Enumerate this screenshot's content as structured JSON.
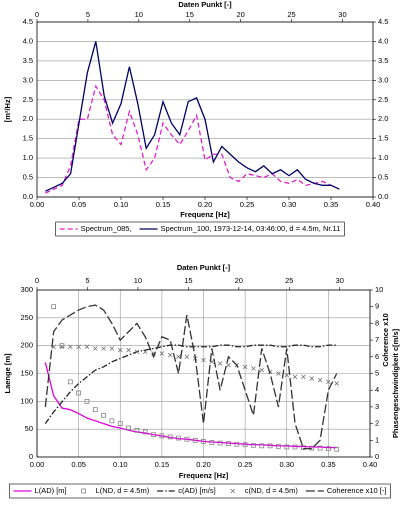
{
  "chart_data": [
    {
      "type": "line",
      "x2label": "Daten Punkt [-]",
      "xlabel": "Frequenz [Hz]",
      "ylabel": "[m²/Hz]",
      "x": [
        0.01,
        0.02,
        0.03,
        0.04,
        0.05,
        0.06,
        0.07,
        0.08,
        0.09,
        0.1,
        0.11,
        0.12,
        0.13,
        0.14,
        0.15,
        0.16,
        0.17,
        0.18,
        0.19,
        0.2,
        0.21,
        0.22,
        0.23,
        0.24,
        0.25,
        0.26,
        0.27,
        0.28,
        0.29,
        0.3,
        0.31,
        0.32,
        0.33,
        0.34,
        0.35,
        0.36
      ],
      "xlim": [
        0,
        0.4
      ],
      "xticks": [
        {
          "value": 0,
          "label": "0.00"
        },
        0.05,
        {
          "value": 0.1,
          "label": "0.10"
        },
        0.15,
        {
          "value": 0.2,
          "label": "0.20"
        },
        0.25,
        {
          "value": 0.3,
          "label": "0.30"
        },
        0.35,
        {
          "value": 0.4,
          "label": "0.40"
        }
      ],
      "x2lim": [
        0,
        33
      ],
      "x2ticks": [
        0,
        5,
        10,
        15,
        20,
        25,
        30
      ],
      "ylim": [
        0,
        4.5
      ],
      "yticks": [
        {
          "value": 0,
          "label": "0.0"
        },
        0.5,
        {
          "value": 1,
          "label": "1.0"
        },
        1.5,
        {
          "value": 2,
          "label": "2.0"
        },
        2.5,
        {
          "value": 3,
          "label": "3.0"
        },
        3.5,
        {
          "value": 4,
          "label": "4.0"
        },
        4.5
      ],
      "y2lim": [
        0,
        4.5
      ],
      "y2ticks": [
        {
          "value": 0,
          "label": "0.0"
        },
        0.5,
        {
          "value": 1,
          "label": "1.0"
        },
        1.5,
        {
          "value": 2,
          "label": "2.0"
        },
        2.5,
        {
          "value": 3,
          "label": "3.0"
        },
        3.5,
        {
          "value": 4,
          "label": "4.0"
        },
        4.5
      ],
      "grid_axes": [
        "y"
      ],
      "series": [
        {
          "name": "Spectrum_085,",
          "color": "#e020c8",
          "dash": "dashed",
          "values": [
            0.1,
            0.2,
            0.3,
            0.8,
            2.0,
            2.0,
            2.85,
            2.5,
            1.6,
            1.35,
            2.2,
            1.6,
            0.7,
            1.0,
            1.9,
            1.6,
            1.35,
            1.7,
            2.1,
            0.95,
            1.1,
            1.1,
            0.5,
            0.4,
            0.6,
            0.55,
            0.5,
            0.6,
            0.4,
            0.35,
            0.45,
            0.3,
            0.35,
            0.4,
            0.3,
            null
          ]
        },
        {
          "name": "Spectrum_100, 1973-12-14, 03:46:00, d = 4.5m, Nr.11",
          "color": "#000066",
          "dash": "solid",
          "values": [
            0.15,
            0.25,
            0.35,
            0.6,
            1.9,
            3.2,
            4.0,
            2.6,
            1.9,
            2.4,
            3.35,
            2.4,
            1.25,
            1.6,
            2.45,
            1.9,
            1.6,
            2.45,
            2.55,
            2.0,
            0.9,
            1.3,
            1.1,
            0.9,
            0.75,
            0.65,
            0.8,
            0.6,
            0.7,
            0.55,
            0.7,
            0.45,
            0.35,
            0.3,
            0.3,
            0.2
          ]
        }
      ]
    },
    {
      "type": "line",
      "x2label": "Daten Punkt [-]",
      "xlabel": "Frequenz [Hz]",
      "ylabel": "Laenge [m]",
      "y2labels": [
        "Coherence x10",
        "Phasengeschwindigkeit c[m/s]"
      ],
      "x": [
        0.01,
        0.02,
        0.03,
        0.04,
        0.05,
        0.06,
        0.07,
        0.08,
        0.09,
        0.1,
        0.11,
        0.12,
        0.13,
        0.14,
        0.15,
        0.16,
        0.17,
        0.18,
        0.19,
        0.2,
        0.21,
        0.22,
        0.23,
        0.24,
        0.25,
        0.26,
        0.27,
        0.28,
        0.29,
        0.3,
        0.31,
        0.32,
        0.33,
        0.34,
        0.35,
        0.36
      ],
      "xlim": [
        0,
        0.4
      ],
      "xticks": [
        {
          "value": 0,
          "label": "0.00"
        },
        0.05,
        {
          "value": 0.1,
          "label": "0.10"
        },
        0.15,
        {
          "value": 0.2,
          "label": "0.20"
        },
        0.25,
        {
          "value": 0.3,
          "label": "0.30"
        },
        0.35,
        {
          "value": 0.4,
          "label": "0.40"
        }
      ],
      "x2lim": [
        0,
        33
      ],
      "x2ticks": [
        0,
        5,
        10,
        15,
        20,
        25,
        30
      ],
      "ylim": [
        0,
        300
      ],
      "yticks": [
        0,
        50,
        100,
        150,
        200,
        250,
        300
      ],
      "y2lim": [
        0,
        10
      ],
      "y2ticks": [
        0,
        1,
        2,
        3,
        4,
        5,
        6,
        7,
        8,
        9,
        10
      ],
      "grid_axes": [
        "x",
        "y"
      ],
      "series": [
        {
          "name": "L(AD)  [m]",
          "color": "#e000e0",
          "dash": "solid",
          "values": [
            170,
            110,
            88,
            85,
            78,
            70,
            65,
            60,
            55,
            52,
            48,
            45,
            43,
            40,
            38,
            35,
            33,
            32,
            30,
            28,
            27,
            26,
            25,
            24,
            23,
            22,
            22,
            21,
            20,
            20,
            19,
            19,
            18,
            18,
            17,
            17
          ]
        },
        {
          "name": "L(ND, d = 4.5m)",
          "color": "#777777",
          "line": false,
          "marker": "square",
          "values": [
            null,
            270,
            200,
            135,
            115,
            100,
            85,
            75,
            65,
            60,
            52,
            48,
            45,
            40,
            38,
            36,
            34,
            32,
            30,
            28,
            26,
            25,
            24,
            23,
            22,
            21,
            20,
            20,
            19,
            18,
            18,
            17,
            16,
            16,
            15,
            14
          ]
        },
        {
          "name": "c(AD) [m/s]",
          "color": "#222222",
          "dash": "dashdot",
          "axis": "y2",
          "values": [
            2.0,
            2.7,
            3.3,
            3.9,
            4.4,
            4.8,
            5.2,
            5.4,
            5.7,
            5.9,
            6.1,
            6.3,
            6.4,
            6.5,
            6.6,
            6.7,
            6.7,
            6.6,
            6.6,
            6.6,
            6.6,
            6.7,
            6.7,
            6.6,
            6.6,
            6.7,
            6.7,
            6.7,
            6.6,
            6.6,
            6.7,
            6.7,
            6.6,
            6.6,
            6.7,
            6.7
          ]
        },
        {
          "name": "c(ND, d = 4.5m)",
          "color": "#666666",
          "line": false,
          "marker": "x",
          "axis": "y2",
          "values": [
            null,
            6.6,
            6.6,
            6.6,
            6.6,
            6.6,
            6.5,
            6.5,
            6.5,
            6.4,
            6.4,
            6.3,
            6.3,
            6.2,
            6.2,
            6.1,
            6.0,
            6.0,
            5.9,
            5.8,
            5.7,
            5.6,
            5.5,
            5.5,
            5.4,
            5.3,
            5.2,
            5.1,
            5.0,
            4.9,
            4.8,
            4.8,
            4.7,
            4.6,
            4.5,
            4.4
          ]
        },
        {
          "name": "Coherence x10 [-]",
          "color": "#333333",
          "dash": "longdash",
          "axis": "y2",
          "values": [
            3.0,
            7.5,
            8.2,
            8.5,
            8.8,
            9.0,
            9.1,
            8.8,
            8.0,
            7.0,
            7.5,
            8.0,
            7.2,
            6.0,
            7.2,
            7.0,
            5.0,
            8.5,
            6.0,
            2.0,
            6.5,
            4.0,
            6.0,
            5.5,
            4.0,
            2.5,
            6.5,
            5.0,
            3.0,
            6.5,
            2.0,
            0.5,
            0.5,
            1.0,
            4.0,
            5.0
          ]
        }
      ]
    }
  ]
}
